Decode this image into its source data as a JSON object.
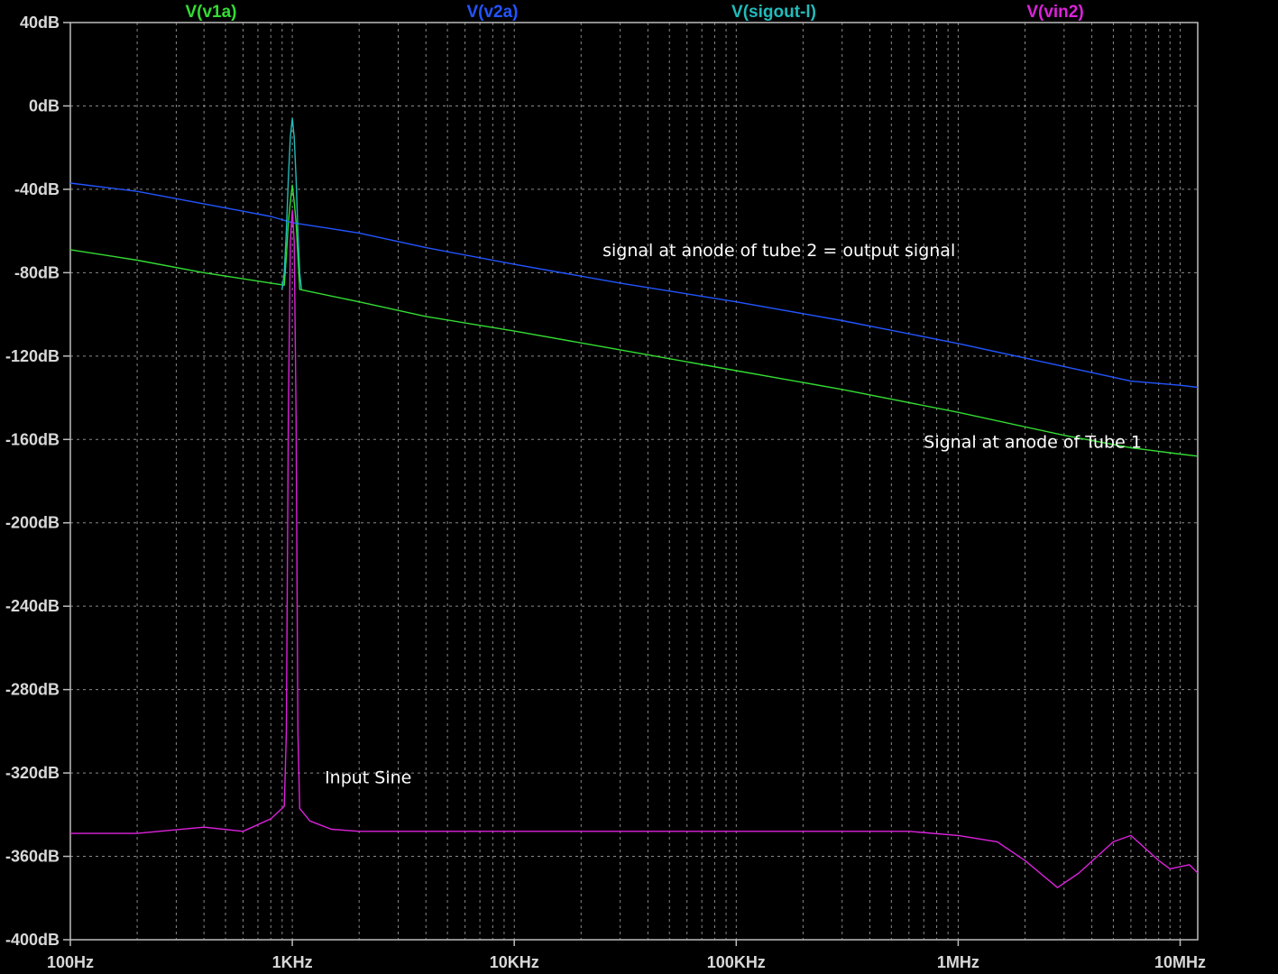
{
  "chart_data": {
    "type": "line",
    "title": "",
    "xlabel": "",
    "ylabel": "",
    "x_scale": "log",
    "xlim": [
      100,
      12000000
    ],
    "ylim": [
      -400,
      40
    ],
    "grid": true,
    "background": "#000000",
    "grid_color": "#8a8a8a",
    "x_ticks": [
      {
        "value": 100,
        "label": "100Hz"
      },
      {
        "value": 1000,
        "label": "1KHz"
      },
      {
        "value": 10000,
        "label": "10KHz"
      },
      {
        "value": 100000,
        "label": "100KHz"
      },
      {
        "value": 1000000,
        "label": "1MHz"
      },
      {
        "value": 10000000,
        "label": "10MHz"
      }
    ],
    "y_ticks": [
      {
        "value": 40,
        "label": "40dB"
      },
      {
        "value": 0,
        "label": "0dB"
      },
      {
        "value": -40,
        "label": "-40dB"
      },
      {
        "value": -80,
        "label": "-80dB"
      },
      {
        "value": -120,
        "label": "-120dB"
      },
      {
        "value": -160,
        "label": "-160dB"
      },
      {
        "value": -200,
        "label": "-200dB"
      },
      {
        "value": -240,
        "label": "-240dB"
      },
      {
        "value": -280,
        "label": "-280dB"
      },
      {
        "value": -320,
        "label": "-320dB"
      },
      {
        "value": -360,
        "label": "-360dB"
      },
      {
        "value": -400,
        "label": "-400dB"
      }
    ],
    "legend_placement": "top",
    "series": [
      {
        "name": "V(v1a)",
        "color": "#33dd33",
        "points": [
          [
            100,
            -69
          ],
          [
            200,
            -74
          ],
          [
            400,
            -80
          ],
          [
            800,
            -85
          ],
          [
            920,
            -86
          ],
          [
            940,
            -72
          ],
          [
            960,
            -56
          ],
          [
            980,
            -46
          ],
          [
            1000,
            -38
          ],
          [
            1020,
            -46
          ],
          [
            1040,
            -56
          ],
          [
            1060,
            -72
          ],
          [
            1080,
            -88
          ],
          [
            2000,
            -94
          ],
          [
            4000,
            -101
          ],
          [
            10000,
            -108
          ],
          [
            30000,
            -117
          ],
          [
            100000,
            -127
          ],
          [
            300000,
            -136
          ],
          [
            1000000,
            -147
          ],
          [
            3000000,
            -158
          ],
          [
            6000000,
            -164
          ],
          [
            10000000,
            -167
          ],
          [
            12000000,
            -168
          ]
        ]
      },
      {
        "name": "V(v2a)",
        "color": "#2255ff",
        "points": [
          [
            100,
            -37
          ],
          [
            200,
            -41
          ],
          [
            400,
            -47
          ],
          [
            800,
            -53
          ],
          [
            1000,
            -56
          ],
          [
            2000,
            -61
          ],
          [
            4000,
            -68
          ],
          [
            10000,
            -76
          ],
          [
            30000,
            -85
          ],
          [
            100000,
            -94
          ],
          [
            300000,
            -103
          ],
          [
            1000000,
            -114
          ],
          [
            3000000,
            -125
          ],
          [
            6000000,
            -132
          ],
          [
            10000000,
            -134
          ],
          [
            12000000,
            -135
          ]
        ]
      },
      {
        "name": "V(sigout-l)",
        "color": "#22bbbb",
        "points": [
          [
            900,
            -88
          ],
          [
            920,
            -80
          ],
          [
            940,
            -60
          ],
          [
            960,
            -35
          ],
          [
            980,
            -15
          ],
          [
            1000,
            -6
          ],
          [
            1020,
            -15
          ],
          [
            1040,
            -35
          ],
          [
            1060,
            -60
          ],
          [
            1080,
            -80
          ],
          [
            1100,
            -88
          ]
        ]
      },
      {
        "name": "V(vin2)",
        "color": "#dd22dd",
        "points": [
          [
            100,
            -349
          ],
          [
            200,
            -349
          ],
          [
            400,
            -346
          ],
          [
            600,
            -348
          ],
          [
            800,
            -342
          ],
          [
            920,
            -336
          ],
          [
            940,
            -300
          ],
          [
            960,
            -150
          ],
          [
            980,
            -65
          ],
          [
            1000,
            -50
          ],
          [
            1020,
            -65
          ],
          [
            1040,
            -150
          ],
          [
            1060,
            -300
          ],
          [
            1080,
            -337
          ],
          [
            1200,
            -343
          ],
          [
            1500,
            -347
          ],
          [
            2000,
            -348
          ],
          [
            10000,
            -348
          ],
          [
            100000,
            -348
          ],
          [
            600000,
            -348
          ],
          [
            1000000,
            -350
          ],
          [
            1500000,
            -353
          ],
          [
            2000000,
            -362
          ],
          [
            2800000,
            -375
          ],
          [
            3500000,
            -368
          ],
          [
            5000000,
            -353
          ],
          [
            6000000,
            -350
          ],
          [
            8000000,
            -362
          ],
          [
            9000000,
            -366
          ],
          [
            11000000,
            -364
          ],
          [
            12000000,
            -368
          ]
        ]
      }
    ],
    "annotations": [
      {
        "text": "signal at anode of tube 2 = output signal",
        "x": 25000,
        "y": -72
      },
      {
        "text": "Signal at anode of Tube 1",
        "x": 700000,
        "y": -164
      },
      {
        "text": "Input Sine",
        "x": 1400,
        "y": -325
      }
    ]
  }
}
